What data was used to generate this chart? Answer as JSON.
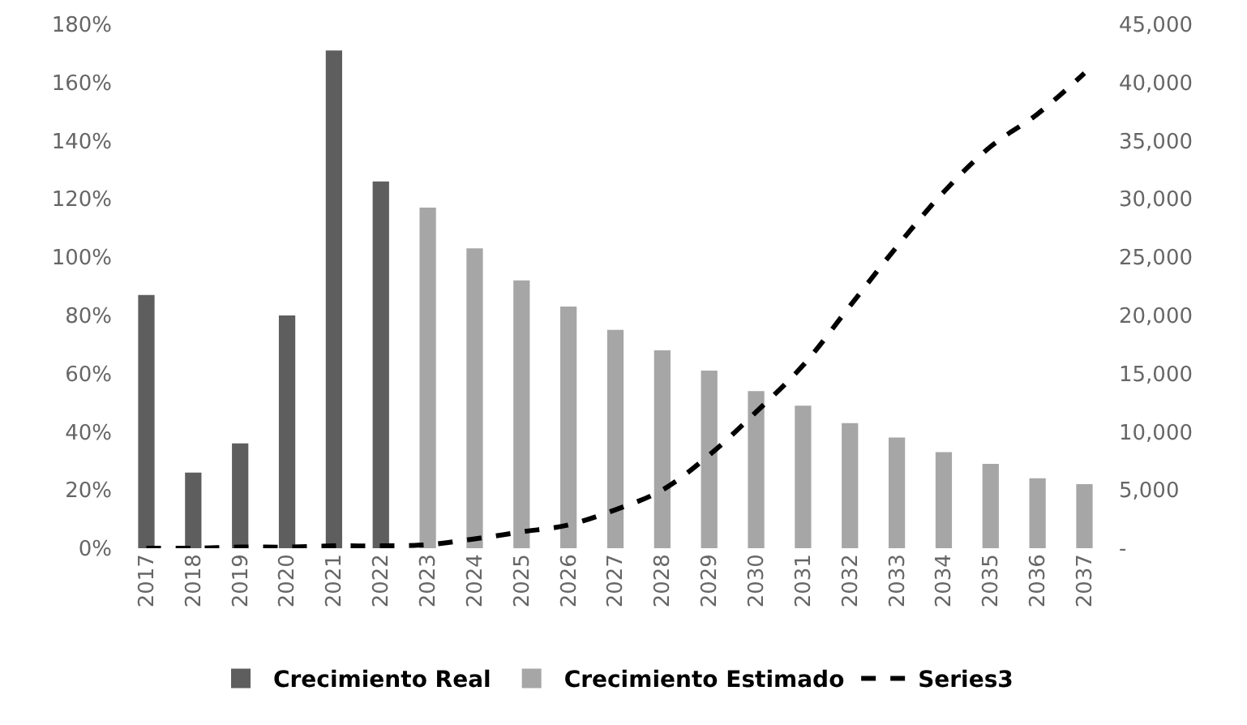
{
  "chart_data": {
    "type": "bar",
    "categories": [
      "2017",
      "2018",
      "2019",
      "2020",
      "2021",
      "2022",
      "2023",
      "2024",
      "2025",
      "2026",
      "2027",
      "2028",
      "2029",
      "2030",
      "2031",
      "2032",
      "2033",
      "2034",
      "2035",
      "2036",
      "2037"
    ],
    "series": [
      {
        "name": "Crecimiento Real",
        "color": "#5e5e5e",
        "values": [
          87,
          26,
          36,
          80,
          171,
          126,
          null,
          null,
          null,
          null,
          null,
          null,
          null,
          null,
          null,
          null,
          null,
          null,
          null,
          null,
          null
        ]
      },
      {
        "name": "Crecimiento Estimado",
        "color": "#a6a6a6",
        "values": [
          null,
          null,
          null,
          null,
          null,
          null,
          117,
          103,
          92,
          83,
          75,
          68,
          61,
          54,
          49,
          43,
          38,
          33,
          29,
          24,
          22
        ]
      },
      {
        "name": "Series3",
        "type": "line",
        "axis": "y2",
        "color": "#000000",
        "line_style": "dashed",
        "values": [
          0,
          0,
          100,
          100,
          200,
          200,
          300,
          800,
          1400,
          2000,
          3300,
          5000,
          8000,
          11700,
          15700,
          20800,
          25900,
          30600,
          34500,
          37300,
          40800
        ]
      }
    ],
    "ylim": [
      0,
      180
    ],
    "yticks": [
      {
        "value": 0,
        "label": "0%"
      },
      {
        "value": 20,
        "label": "20%"
      },
      {
        "value": 40,
        "label": "40%"
      },
      {
        "value": 60,
        "label": "60%"
      },
      {
        "value": 80,
        "label": "80%"
      },
      {
        "value": 100,
        "label": "100%"
      },
      {
        "value": 120,
        "label": "120%"
      },
      {
        "value": 140,
        "label": "140%"
      },
      {
        "value": 160,
        "label": "160%"
      },
      {
        "value": 180,
        "label": "180%"
      }
    ],
    "y2lim": [
      0,
      45000
    ],
    "y2ticks": [
      {
        "value": 0,
        "label": "-"
      },
      {
        "value": 5000,
        "label": "5,000"
      },
      {
        "value": 10000,
        "label": "10,000"
      },
      {
        "value": 15000,
        "label": "15,000"
      },
      {
        "value": 20000,
        "label": "20,000"
      },
      {
        "value": 25000,
        "label": "25,000"
      },
      {
        "value": 30000,
        "label": "30,000"
      },
      {
        "value": 35000,
        "label": "35,000"
      },
      {
        "value": 40000,
        "label": "40,000"
      },
      {
        "value": 45000,
        "label": "45,000"
      }
    ],
    "grid": false,
    "legend": "bottom"
  }
}
